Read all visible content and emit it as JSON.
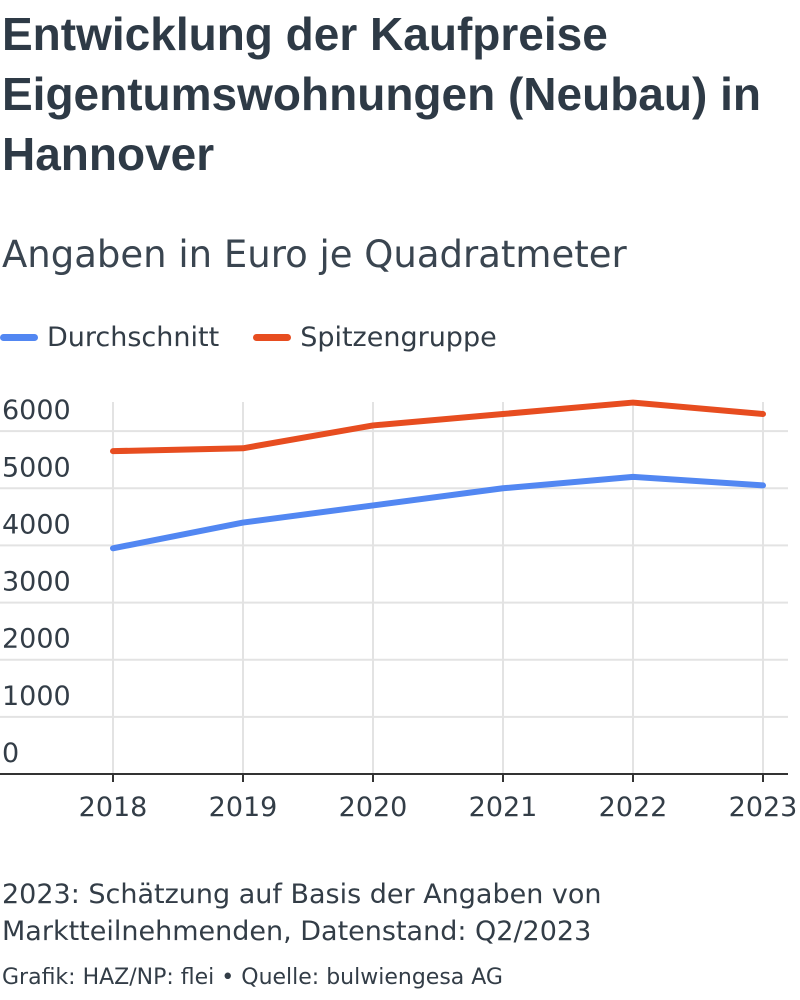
{
  "header": {
    "title": "Entwicklung der Kaufpreise Eigentumswohnungen (Neubau) in Hannover",
    "subtitle": "Angaben in Euro je Quadratmeter"
  },
  "footer": {
    "note": "2023: Schätzung auf Basis der Angaben von Marktteilnehmenden, Datenstand: Q2/2023",
    "credit": "Grafik: HAZ/NP: flei • Quelle: bulwiengesa AG"
  },
  "chart_data": {
    "type": "line",
    "title": "Entwicklung der Kaufpreise Eigentumswohnungen (Neubau) in Hannover",
    "subtitle": "Angaben in Euro je Quadratmeter",
    "xlabel": "",
    "ylabel": "",
    "x": [
      "2018",
      "2019",
      "2020",
      "2021",
      "2022",
      "2023"
    ],
    "series": [
      {
        "name": "Durchschnitt",
        "color": "#5287f2",
        "values": [
          3950,
          4400,
          4700,
          5000,
          5200,
          5050
        ]
      },
      {
        "name": "Spitzengruppe",
        "color": "#e74d20",
        "values": [
          5650,
          5700,
          6100,
          6300,
          6500,
          6300
        ]
      }
    ],
    "yticks": [
      0,
      1000,
      2000,
      3000,
      4000,
      5000,
      6000
    ],
    "ylim": [
      0,
      6500
    ],
    "grid": true,
    "legend": "top-left"
  }
}
